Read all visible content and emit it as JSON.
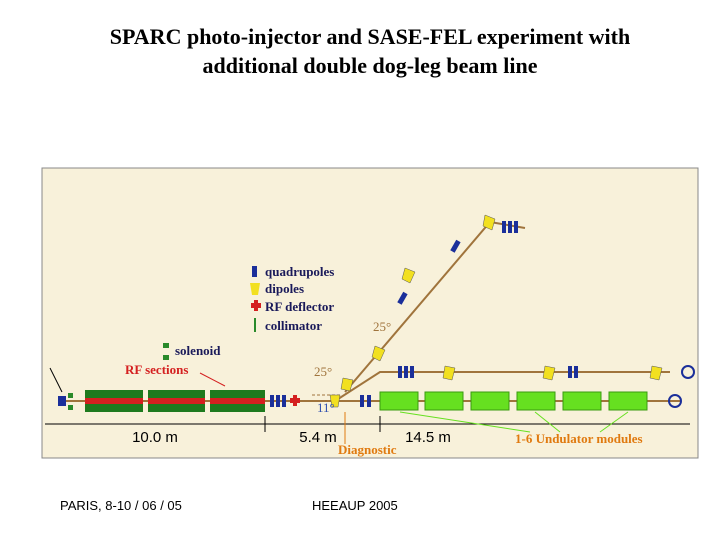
{
  "header": {
    "title_lines": [
      "SPARC photo-injector and SASE-FEL experiment with",
      "additional double dog-leg beam line"
    ]
  },
  "diagram": {
    "legend": [
      "quadrupoles",
      "dipoles",
      "RF deflector",
      "collimator"
    ],
    "solenoid": "solenoid",
    "rf_sections": "RF sections",
    "angles": [
      "25°",
      "25°",
      "11°"
    ],
    "distances": [
      "10.0 m",
      "5.4 m",
      "14.5 m"
    ],
    "diagnostic": "Diagnostic",
    "undulators": "1-6 Undulator modules"
  },
  "footer": {
    "left": "PARIS, 8-10 / 06 / 05",
    "center": "HEEAUP 2005"
  }
}
